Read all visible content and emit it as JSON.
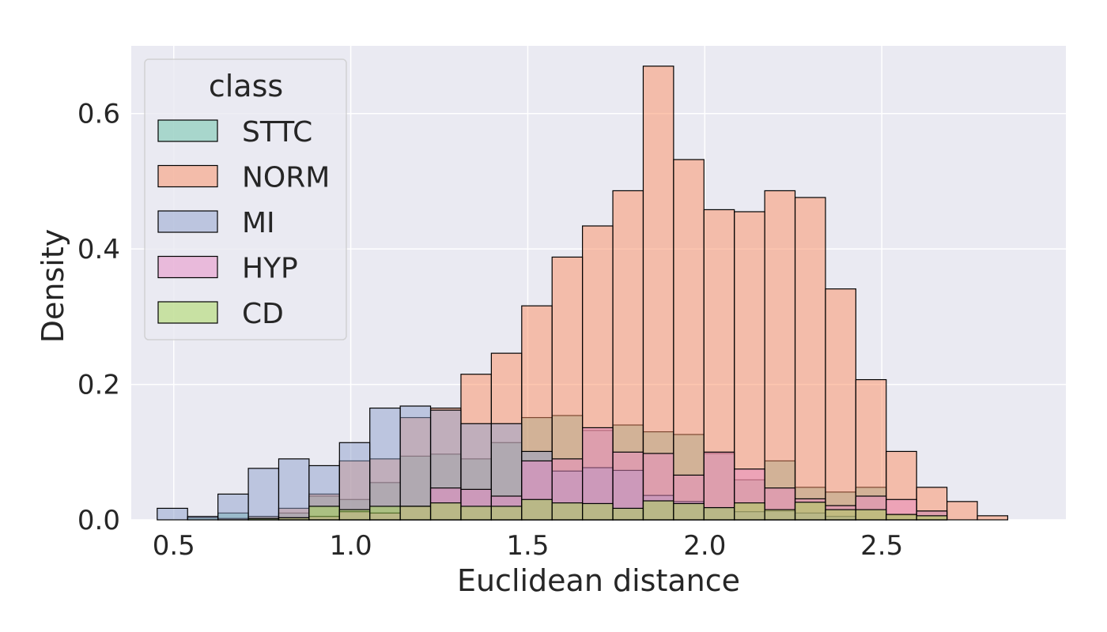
{
  "chart_data": {
    "type": "bar",
    "subtype": "overlapping-histogram",
    "title": "",
    "xlabel": "Euclidean distance",
    "ylabel": "Density",
    "xlim": [
      0.38,
      3.02
    ],
    "ylim": [
      0,
      0.7
    ],
    "xticks": [
      0.5,
      1.0,
      1.5,
      2.0,
      2.5
    ],
    "xtick_labels": [
      "0.5",
      "1.0",
      "1.5",
      "2.0",
      "2.5"
    ],
    "yticks": [
      0.0,
      0.2,
      0.4,
      0.6
    ],
    "ytick_labels": [
      "0.0",
      "0.2",
      "0.4",
      "0.6"
    ],
    "grid": true,
    "legend_position": "top-left",
    "legend_title": "class",
    "bin_start": 0.4533,
    "bin_width": 0.0858,
    "bin_count": 28,
    "series": [
      {
        "name": "STTC",
        "color": "#66c2a5",
        "values": [
          0,
          0.003,
          0.01,
          0.005,
          0.01,
          0.035,
          0.03,
          0.055,
          0.094,
          0.097,
          0.09,
          0.114,
          0.151,
          0.154,
          0.132,
          0.14,
          0.13,
          0.126,
          0.098,
          0.059,
          0.087,
          0.048,
          0.041,
          0.048,
          0.007,
          0.013,
          0,
          0
        ]
      },
      {
        "name": "NORM",
        "color": "#fc8d62",
        "values": [
          0,
          0,
          0.002,
          0.005,
          0.017,
          0.038,
          0.087,
          0.09,
          0.151,
          0.165,
          0.215,
          0.246,
          0.316,
          0.388,
          0.434,
          0.486,
          0.67,
          0.532,
          0.458,
          0.455,
          0.486,
          0.476,
          0.341,
          0.207,
          0.101,
          0.048,
          0.027,
          0.006
        ]
      },
      {
        "name": "MI",
        "color": "#8da0cb",
        "values": [
          0.017,
          0.005,
          0.038,
          0.076,
          0.09,
          0.08,
          0.114,
          0.165,
          0.168,
          0.162,
          0.142,
          0.142,
          0.101,
          0.072,
          0.077,
          0.073,
          0.036,
          0.027,
          0.018,
          0.012,
          0.013,
          0.01,
          0.005,
          0,
          0,
          0,
          0,
          0
        ]
      },
      {
        "name": "HYP",
        "color": "#e78ac3",
        "values": [
          0,
          0,
          0,
          0,
          0.003,
          0.005,
          0.012,
          0.01,
          0.02,
          0.047,
          0.045,
          0.035,
          0.087,
          0.09,
          0.136,
          0.1,
          0.098,
          0.066,
          0.1,
          0.075,
          0.047,
          0.031,
          0.021,
          0.035,
          0.03,
          0.013,
          0,
          0
        ]
      },
      {
        "name": "CD",
        "color": "#a6d854",
        "values": [
          0,
          0,
          0,
          0.002,
          0.003,
          0.02,
          0.015,
          0.02,
          0.02,
          0.025,
          0.02,
          0.02,
          0.03,
          0.025,
          0.024,
          0.017,
          0.028,
          0.024,
          0.018,
          0.025,
          0.015,
          0.026,
          0.015,
          0.015,
          0.008,
          0.006,
          0,
          0
        ]
      }
    ]
  }
}
